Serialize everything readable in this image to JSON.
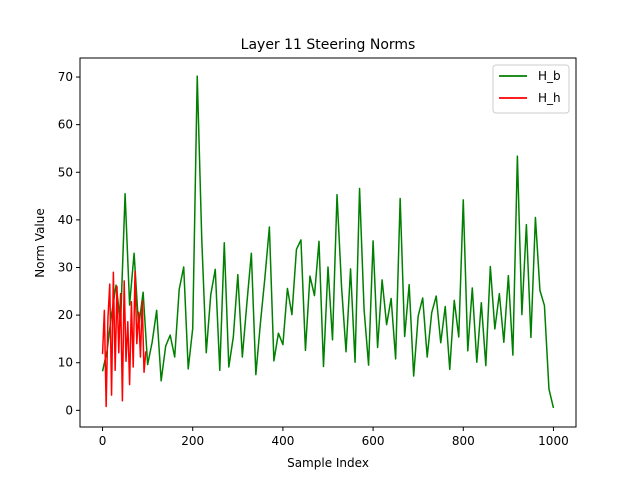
{
  "chart_data": {
    "type": "line",
    "title": "Layer 11 Steering Norms",
    "xlabel": "Sample Index",
    "ylabel": "Norm Value",
    "xlim": [
      -50,
      1050
    ],
    "ylim": [
      -3.5,
      74
    ],
    "x_ticks": [
      0,
      200,
      400,
      600,
      800,
      1000
    ],
    "y_ticks": [
      0,
      10,
      20,
      30,
      40,
      50,
      60,
      70
    ],
    "legend_position": "top-right",
    "grid": false,
    "series": [
      {
        "name": "H_b",
        "color": "#008000",
        "x_start": 0,
        "x_step": 10,
        "values": [
          8.2,
          12.5,
          20.1,
          26.3,
          18.4,
          45.5,
          22.1,
          33.0,
          17.5,
          24.8,
          9.6,
          14.3,
          21.0,
          6.2,
          13.5,
          15.8,
          11.2,
          25.4,
          30.1,
          8.7,
          17.2,
          70.2,
          36.0,
          12.1,
          24.3,
          29.6,
          8.4,
          35.2,
          9.1,
          15.4,
          28.5,
          11.2,
          22.4,
          33.0,
          7.5,
          18.2,
          27.8,
          38.5,
          10.4,
          16.2,
          13.8,
          25.6,
          20.1,
          33.8,
          35.8,
          12.6,
          28.2,
          24.1,
          35.5,
          9.2,
          30.1,
          14.8,
          45.3,
          26.0,
          12.3,
          29.7,
          10.1,
          46.6,
          21.2,
          9.5,
          35.6,
          13.2,
          27.4,
          18.0,
          23.5,
          10.8,
          44.5,
          15.5,
          26.4,
          7.2,
          19.8,
          23.6,
          11.2,
          20.5,
          24.0,
          14.2,
          21.8,
          8.6,
          23.1,
          15.4,
          44.2,
          12.5,
          25.7,
          10.1,
          22.6,
          9.4,
          30.2,
          17.1,
          24.5,
          14.3,
          28.3,
          11.6,
          53.4,
          20.1,
          39.0,
          15.3,
          40.5,
          25.2,
          22.0,
          4.5,
          0.5
        ]
      },
      {
        "name": "H_h",
        "color": "#ff0000",
        "x_start": 0,
        "x_step": 4,
        "values": [
          11.8,
          21.0,
          0.8,
          19.5,
          26.5,
          3.2,
          29.0,
          8.4,
          26.0,
          12.1,
          24.5,
          2.0,
          27.2,
          10.3,
          18.6,
          5.4,
          22.8,
          9.1,
          29.2,
          14.0,
          20.6,
          11.2,
          23.0,
          8.0,
          12.4
        ]
      }
    ]
  }
}
